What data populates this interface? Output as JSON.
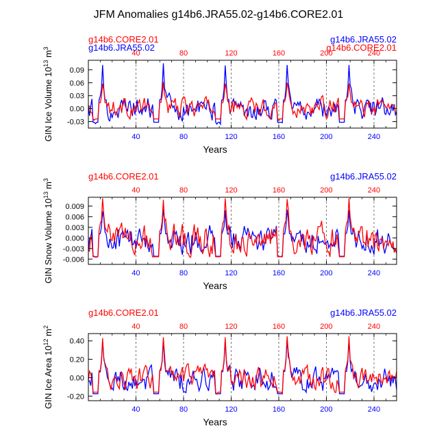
{
  "figure": {
    "title": "JFM Anomalies g14b6.JRA55.02-g14b6.CORE2.01",
    "colors": {
      "core": "#ff0000",
      "jra": "#0000ff",
      "axis": "#000000",
      "grid": "#555555"
    }
  },
  "chart_data": [
    {
      "type": "line",
      "ylabel": "GIN Ice Volume 10",
      "yunit_exp": "13",
      "yunit": "m",
      "yunit_pow": "3",
      "xlabel": "Years",
      "left_label": "g14b6.CORE2.01",
      "right_label": "g14b6.JRA55.02",
      "left_label_2": "g14b6.JRA55.02",
      "right_label_2": "g14b6.CORE2.01",
      "xlim": [
        0,
        259
      ],
      "ylim": [
        -0.045,
        0.112
      ],
      "xticks": [
        40,
        80,
        120,
        160,
        200,
        240
      ],
      "xtick_labels": [
        "40",
        "80",
        "120",
        "160",
        "200",
        "240"
      ],
      "yticks": [
        -0.03,
        0.0,
        0.03,
        0.06,
        0.09
      ],
      "ytick_labels": [
        "-0.03",
        "0.00",
        "0.03",
        "0.06",
        "0.09"
      ],
      "grid": "vertical dashed at x ticks",
      "series": [
        {
          "name": "g14b6.CORE2.01",
          "color": "#ff0000",
          "peaks": [
            [
              12,
              0.058
            ],
            [
              63,
              0.062
            ],
            [
              115,
              0.058
            ],
            [
              167,
              0.06
            ],
            [
              219,
              0.058
            ]
          ],
          "typical_range": [
            -0.035,
            0.04
          ]
        },
        {
          "name": "g14b6.JRA55.02",
          "color": "#0000ff",
          "peaks": [
            [
              12,
              0.101
            ],
            [
              63,
              0.105
            ],
            [
              115,
              0.1
            ],
            [
              167,
              0.101
            ],
            [
              219,
              0.101
            ]
          ],
          "typical_range": [
            -0.045,
            0.045
          ]
        }
      ]
    },
    {
      "type": "line",
      "ylabel": "GIN Snow Volume 10",
      "yunit_exp": "13",
      "yunit": "m",
      "yunit_pow": "3",
      "xlabel": "Years",
      "left_label": "g14b6.CORE2.01",
      "right_label": "g14b6.JRA55.02",
      "xlim": [
        0,
        259
      ],
      "ylim": [
        -0.0075,
        0.0115
      ],
      "xticks": [
        40,
        80,
        120,
        160,
        200,
        240
      ],
      "xtick_labels": [
        "40",
        "80",
        "120",
        "160",
        "200",
        "240"
      ],
      "yticks": [
        -0.006,
        -0.003,
        0.0,
        0.003,
        0.006,
        0.009
      ],
      "ytick_labels": [
        "-0.006",
        "-0.003",
        "0.000",
        "0.003",
        "0.006",
        "0.009"
      ],
      "grid": "vertical dashed at x ticks",
      "series": [
        {
          "name": "g14b6.CORE2.01",
          "color": "#ff0000",
          "peaks": [
            [
              12,
              0.0112
            ],
            [
              63,
              0.0108
            ],
            [
              115,
              0.0112
            ],
            [
              167,
              0.011
            ],
            [
              219,
              0.0112
            ]
          ],
          "typical_range": [
            -0.0075,
            0.007
          ]
        },
        {
          "name": "g14b6.JRA55.02",
          "color": "#0000ff",
          "peaks": [
            [
              12,
              0.0075
            ],
            [
              63,
              0.0082
            ],
            [
              115,
              0.0078
            ],
            [
              167,
              0.008
            ],
            [
              219,
              0.0078
            ]
          ],
          "typical_range": [
            -0.0072,
            0.006
          ]
        }
      ]
    },
    {
      "type": "line",
      "ylabel": "GIN Ice Area 10",
      "yunit_exp": "12",
      "yunit": "m",
      "yunit_pow": "2",
      "xlabel": "Years",
      "left_label": "g14b6.CORE2.01",
      "right_label": "g14b6.JRA55.02",
      "xlim": [
        0,
        259
      ],
      "ylim": [
        -0.25,
        0.48
      ],
      "xticks": [
        40,
        80,
        120,
        160,
        200,
        240
      ],
      "xtick_labels": [
        "40",
        "80",
        "120",
        "160",
        "200",
        "240"
      ],
      "yticks": [
        -0.2,
        0.0,
        0.2,
        0.4
      ],
      "ytick_labels": [
        "-0.20",
        "0.00",
        "0.20",
        "0.40"
      ],
      "grid": "vertical dashed at x ticks",
      "series": [
        {
          "name": "g14b6.CORE2.01",
          "color": "#ff0000",
          "peaks": [
            [
              12,
              0.43
            ],
            [
              63,
              0.44
            ],
            [
              115,
              0.44
            ],
            [
              167,
              0.45
            ],
            [
              219,
              0.45
            ]
          ],
          "typical_range": [
            -0.22,
            0.2
          ]
        },
        {
          "name": "g14b6.JRA55.02",
          "color": "#0000ff",
          "peaks": [
            [
              12,
              0.4
            ],
            [
              63,
              0.41
            ],
            [
              115,
              0.41
            ],
            [
              167,
              0.42
            ],
            [
              219,
              0.42
            ]
          ],
          "typical_range": [
            -0.24,
            0.2
          ]
        }
      ]
    }
  ]
}
